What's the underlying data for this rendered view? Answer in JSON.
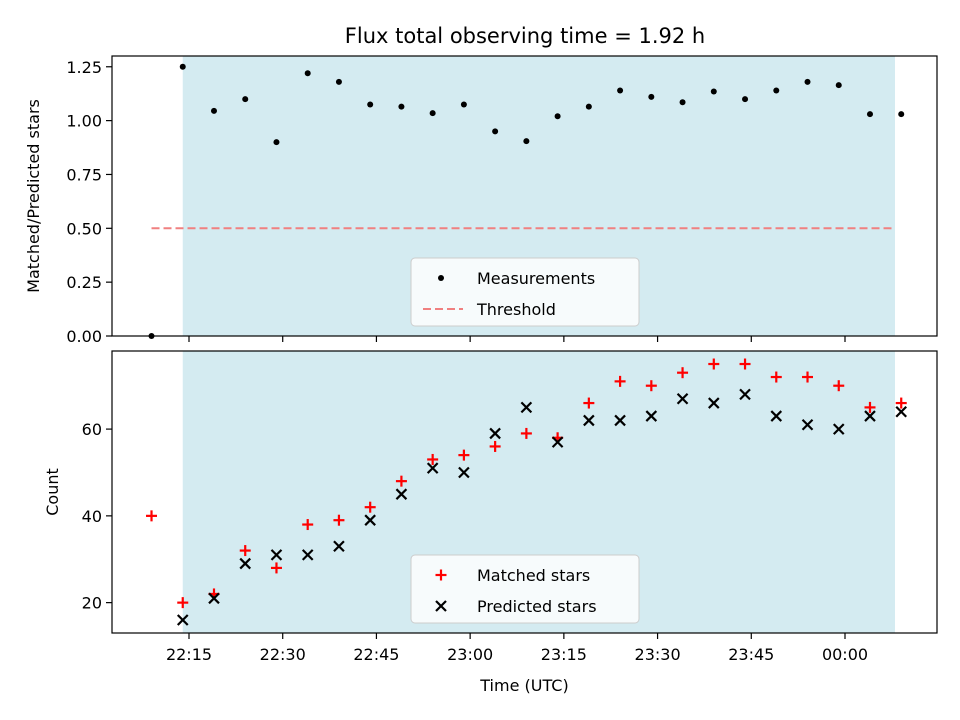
{
  "title": "Flux total observing time = 1.92 h",
  "colors": {
    "shade": "#d4ebf1",
    "measure": "#000000",
    "threshold": "#f08080",
    "matched": "#ff0000",
    "predicted": "#000000"
  },
  "chart_data": [
    {
      "type": "scatter",
      "ylabel": "Matched/Predicted stars",
      "ylim": [
        0,
        1.3
      ],
      "yticks": [
        0,
        0.25,
        0.5,
        0.75,
        1.0,
        1.25
      ],
      "ytick_labels": [
        "0.00",
        "0.25",
        "0.50",
        "0.75",
        "1.00",
        "1.25"
      ],
      "shaded_time_range": [
        "22:14",
        "00:08"
      ],
      "legend": [
        "Measurements",
        "Threshold"
      ],
      "legend_position": "lower-center",
      "threshold": {
        "value": 0.5,
        "range": [
          "22:09",
          "00:08"
        ]
      },
      "series": [
        {
          "name": "Measurements",
          "x": [
            "22:09",
            "22:14",
            "22:19",
            "22:24",
            "22:29",
            "22:34",
            "22:39",
            "22:44",
            "22:49",
            "22:54",
            "22:59",
            "23:04",
            "23:09",
            "23:14",
            "23:19",
            "23:24",
            "23:29",
            "23:34",
            "23:39",
            "23:44",
            "23:49",
            "23:54",
            "23:59",
            "00:04",
            "00:09"
          ],
          "y": [
            0.0,
            1.25,
            1.045,
            1.1,
            0.9,
            1.22,
            1.18,
            1.075,
            1.065,
            1.035,
            1.075,
            0.95,
            0.905,
            1.02,
            1.065,
            1.14,
            1.11,
            1.085,
            1.135,
            1.1,
            1.14,
            1.18,
            1.165,
            1.03,
            1.03
          ]
        }
      ]
    },
    {
      "type": "scatter",
      "xlabel": "Time (UTC)",
      "ylabel": "Count",
      "ylim": [
        13,
        78
      ],
      "yticks": [
        20,
        40,
        60
      ],
      "xticks": [
        "22:15",
        "22:30",
        "22:45",
        "23:00",
        "23:15",
        "23:30",
        "23:45",
        "00:00"
      ],
      "shaded_time_range": [
        "22:14",
        "00:08"
      ],
      "legend": [
        "Matched stars",
        "Predicted stars"
      ],
      "legend_position": "lower-center",
      "series": [
        {
          "name": "Matched stars",
          "x": [
            "22:09",
            "22:14",
            "22:19",
            "22:24",
            "22:29",
            "22:34",
            "22:39",
            "22:44",
            "22:49",
            "22:54",
            "22:59",
            "23:04",
            "23:09",
            "23:14",
            "23:19",
            "23:24",
            "23:29",
            "23:34",
            "23:39",
            "23:44",
            "23:49",
            "23:54",
            "23:59",
            "00:04",
            "00:09"
          ],
          "y": [
            40,
            20,
            22,
            32,
            28,
            38,
            39,
            42,
            48,
            53,
            54,
            56,
            59,
            58,
            66,
            71,
            70,
            73,
            75,
            75,
            72,
            72,
            70,
            65,
            66
          ]
        },
        {
          "name": "Predicted stars",
          "x": [
            "22:14",
            "22:19",
            "22:24",
            "22:29",
            "22:34",
            "22:39",
            "22:44",
            "22:49",
            "22:54",
            "22:59",
            "23:04",
            "23:09",
            "23:14",
            "23:19",
            "23:24",
            "23:29",
            "23:34",
            "23:39",
            "23:44",
            "23:49",
            "23:54",
            "23:59",
            "00:04",
            "00:09"
          ],
          "y": [
            16,
            21,
            29,
            31,
            31,
            33,
            39,
            45,
            51,
            50,
            59,
            65,
            57,
            62,
            62,
            63,
            67,
            66,
            68,
            63,
            61,
            60,
            63,
            64
          ]
        }
      ]
    }
  ]
}
